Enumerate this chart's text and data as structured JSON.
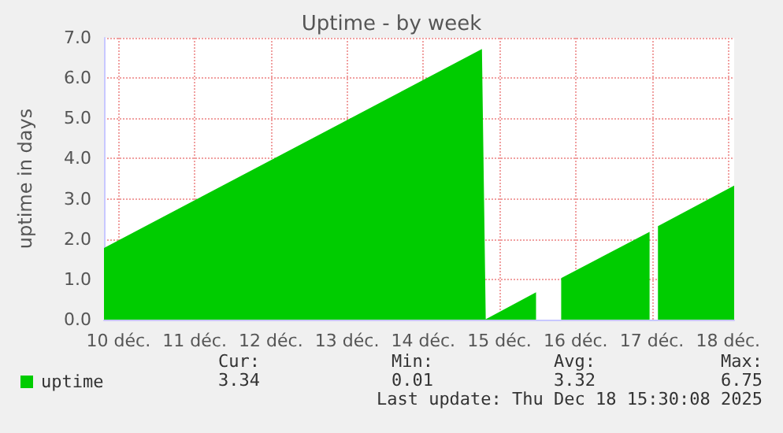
{
  "chart_data": {
    "type": "area",
    "title": "Uptime - by week",
    "ylabel": "uptime in days",
    "x": [
      10.31,
      15.27,
      15.32,
      15.98,
      16.1,
      16.31,
      17.47,
      17.52,
      17.58,
      18.58
    ],
    "series": [
      {
        "name": "uptime",
        "color": "#00cc00",
        "values": [
          1.78,
          6.72,
          0.01,
          0.68,
          null,
          1.03,
          2.18,
          null,
          2.32,
          3.33
        ]
      }
    ],
    "xlim": [
      10.31,
      18.58
    ],
    "xticks": [
      {
        "value": 10.5,
        "label": "10 déc."
      },
      {
        "value": 11.5,
        "label": "11 déc."
      },
      {
        "value": 12.5,
        "label": "12 déc."
      },
      {
        "value": 13.5,
        "label": "13 déc."
      },
      {
        "value": 14.5,
        "label": "14 déc."
      },
      {
        "value": 15.5,
        "label": "15 déc."
      },
      {
        "value": 16.5,
        "label": "16 déc."
      },
      {
        "value": 17.5,
        "label": "17 déc."
      },
      {
        "value": 18.5,
        "label": "18 déc."
      }
    ],
    "ylim": [
      0,
      7
    ],
    "yticks": [
      {
        "value": 0,
        "label": "0.0"
      },
      {
        "value": 1,
        "label": "1.0"
      },
      {
        "value": 2,
        "label": "2.0"
      },
      {
        "value": 3,
        "label": "3.0"
      },
      {
        "value": 4,
        "label": "4.0"
      },
      {
        "value": 5,
        "label": "5.0"
      },
      {
        "value": 6,
        "label": "6.0"
      },
      {
        "value": 7,
        "label": "7.0"
      }
    ],
    "grid": true,
    "legend": "bottom left",
    "annotations": [
      "Cur:",
      "Min:",
      "Avg:",
      "Max:",
      "3.34",
      "0.01",
      "3.32",
      "6.75",
      "Last update: Thu Dec 18 15:30:08 2025"
    ]
  }
}
